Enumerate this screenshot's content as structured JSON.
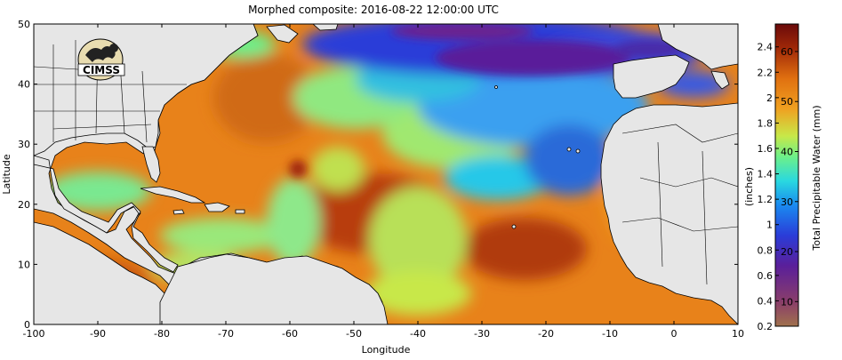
{
  "title": "Morphed composite: 2016-08-22 12:00:00 UTC",
  "logo_text": "CIMSS",
  "map": {
    "xlabel": "Longitude",
    "ylabel": "Latitude",
    "xlim": [
      -100,
      10
    ],
    "ylim": [
      0,
      50
    ],
    "x_ticks": [
      -100,
      -90,
      -80,
      -70,
      -60,
      -50,
      -40,
      -30,
      -20,
      -10,
      0,
      10
    ],
    "y_ticks": [
      0,
      10,
      20,
      30,
      40,
      50
    ]
  },
  "colorbar": {
    "label_inches": "(inches)",
    "label_mm": "Total Precipitable Water (mm)",
    "inch_ticks": [
      "0.2",
      "0.4",
      "0.6",
      "0.8",
      "1",
      "1.2",
      "1.4",
      "1.6",
      "1.8",
      "2",
      "2.2",
      "2.4"
    ],
    "mm_ticks": [
      "10",
      "20",
      "30",
      "40",
      "50",
      "60"
    ],
    "colors": [
      "#a0714c",
      "#7a2a78",
      "#4a1f9a",
      "#2a3cd8",
      "#1a8af0",
      "#29d8e0",
      "#6cf08a",
      "#c8e848",
      "#f0a020",
      "#e07010",
      "#a02808",
      "#6a0a0a"
    ]
  },
  "colors": {
    "land": "#e6e6e6",
    "border": "#000000"
  }
}
